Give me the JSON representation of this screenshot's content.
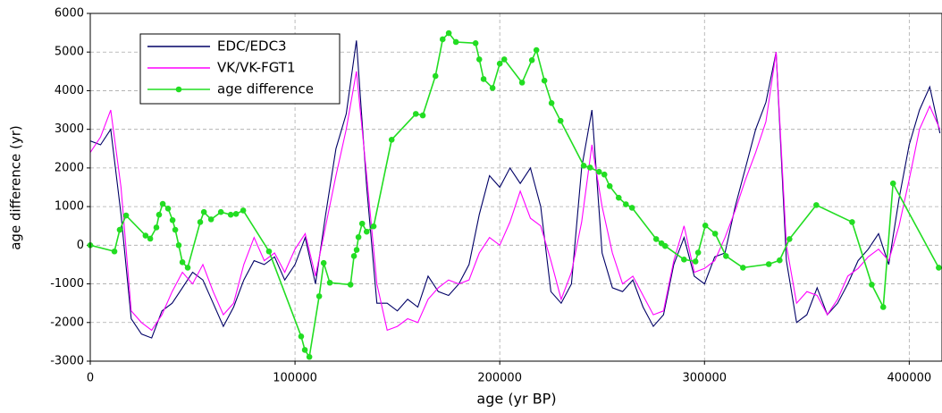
{
  "chart_data": {
    "type": "line",
    "x_label": "age (yr BP)",
    "y_label": "age difference (yr)",
    "xlim": [
      0,
      416000
    ],
    "ylim": [
      -3000,
      6000
    ],
    "xticks": [
      0,
      100000,
      200000,
      300000,
      400000
    ],
    "yticks": [
      -3000,
      -2000,
      -1000,
      0,
      1000,
      2000,
      3000,
      4000,
      5000,
      6000
    ],
    "grid": true,
    "legend": "upper left",
    "x": [
      0,
      5000,
      10000,
      15000,
      20000,
      25000,
      30000,
      35000,
      40000,
      45000,
      50000,
      55000,
      60000,
      65000,
      70000,
      75000,
      80000,
      85000,
      90000,
      95000,
      100000,
      105000,
      110000,
      115000,
      120000,
      125000,
      130000,
      135000,
      140000,
      145000,
      150000,
      155000,
      160000,
      165000,
      170000,
      175000,
      180000,
      185000,
      190000,
      195000,
      200000,
      205000,
      210000,
      215000,
      220000,
      225000,
      230000,
      235000,
      240000,
      245000,
      250000,
      255000,
      260000,
      265000,
      270000,
      275000,
      280000,
      285000,
      290000,
      295000,
      300000,
      305000,
      310000,
      315000,
      320000,
      325000,
      330000,
      335000,
      340000,
      345000,
      350000,
      355000,
      360000,
      365000,
      370000,
      375000,
      380000,
      385000,
      390000,
      395000,
      400000,
      405000,
      410000,
      415000
    ],
    "series": [
      {
        "name": "EDC/EDC3",
        "color": "#000066",
        "values": [
          2700,
          2600,
          3000,
          800,
          -1900,
          -2300,
          -2400,
          -1700,
          -1500,
          -1100,
          -700,
          -900,
          -1500,
          -2100,
          -1600,
          -900,
          -400,
          -500,
          -300,
          -900,
          -500,
          200,
          -1000,
          800,
          2500,
          3400,
          5300,
          1500,
          -1500,
          -1500,
          -1700,
          -1400,
          -1600,
          -800,
          -1200,
          -1300,
          -1000,
          -500,
          800,
          1800,
          1500,
          2000,
          1600,
          2000,
          1000,
          -1200,
          -1500,
          -1000,
          2000,
          3500,
          -200,
          -1100,
          -1200,
          -900,
          -1600,
          -2100,
          -1800,
          -500,
          200,
          -800,
          -1000,
          -300,
          -200,
          1000,
          2000,
          3000,
          3700,
          5000,
          -400,
          -2000,
          -1800,
          -1100,
          -1800,
          -1500,
          -1000,
          -400,
          -100,
          300,
          -500,
          1200,
          2600,
          3500,
          4100,
          2900
        ]
      },
      {
        "name": "VK/VK-FGT1",
        "color": "#ff00ff",
        "values": [
          2400,
          2800,
          3500,
          1500,
          -1700,
          -2000,
          -2200,
          -1800,
          -1200,
          -700,
          -1000,
          -500,
          -1200,
          -1800,
          -1500,
          -500,
          200,
          -400,
          -200,
          -700,
          -100,
          300,
          -800,
          500,
          1800,
          3000,
          4500,
          1800,
          -1000,
          -2200,
          -2100,
          -1900,
          -2000,
          -1400,
          -1100,
          -900,
          -1000,
          -900,
          -200,
          200,
          0,
          600,
          1400,
          700,
          500,
          -400,
          -1400,
          -700,
          600,
          2600,
          1000,
          -200,
          -1000,
          -800,
          -1300,
          -1800,
          -1700,
          -400,
          500,
          -700,
          -600,
          -400,
          200,
          900,
          1700,
          2400,
          3200,
          5000,
          0,
          -1500,
          -1200,
          -1300,
          -1800,
          -1400,
          -800,
          -600,
          -300,
          -100,
          -400,
          500,
          1700,
          3000,
          3600,
          3000
        ]
      },
      {
        "name": "age difference",
        "color": "#22dd22",
        "markers": true,
        "x": [
          0,
          11800,
          14400,
          17500,
          27000,
          29300,
          32300,
          33600,
          35400,
          38000,
          40200,
          41500,
          43200,
          45000,
          47600,
          53700,
          55500,
          59000,
          63800,
          68600,
          71200,
          74700,
          87300,
          103000,
          104800,
          107000,
          111800,
          114000,
          117000,
          127100,
          128800,
          130100,
          131000,
          132800,
          135000,
          138400,
          147200,
          159000,
          162400,
          168600,
          172100,
          175100,
          178600,
          188200,
          190000,
          192100,
          196500,
          200000,
          202200,
          210900,
          215700,
          217900,
          221800,
          225300,
          229700,
          241000,
          244100,
          248500,
          251100,
          253700,
          258100,
          261600,
          264600,
          276400,
          279000,
          280800,
          290000,
          295600,
          296900,
          300400,
          305200,
          310500,
          318800,
          331400,
          336700,
          341500,
          354600,
          372100,
          381700,
          387300,
          392100,
          414400
        ],
        "values": [
          0,
          -160,
          400,
          770,
          250,
          170,
          460,
          790,
          1070,
          950,
          650,
          400,
          0,
          -440,
          -580,
          600,
          860,
          670,
          860,
          790,
          810,
          900,
          -160,
          -2360,
          -2710,
          -2890,
          -1320,
          -460,
          -970,
          -1020,
          -280,
          -120,
          210,
          560,
          350,
          490,
          2730,
          3400,
          3360,
          4380,
          5330,
          5490,
          5260,
          5230,
          4810,
          4300,
          4070,
          4700,
          4810,
          4210,
          4790,
          5050,
          4260,
          3680,
          3220,
          2060,
          2010,
          1900,
          1830,
          1530,
          1230,
          1060,
          970,
          160,
          50,
          -20,
          -370,
          -420,
          -190,
          510,
          300,
          -280,
          -580,
          -490,
          -390,
          160,
          1040,
          600,
          -1020,
          -1600,
          1600,
          -580
        ]
      }
    ]
  }
}
